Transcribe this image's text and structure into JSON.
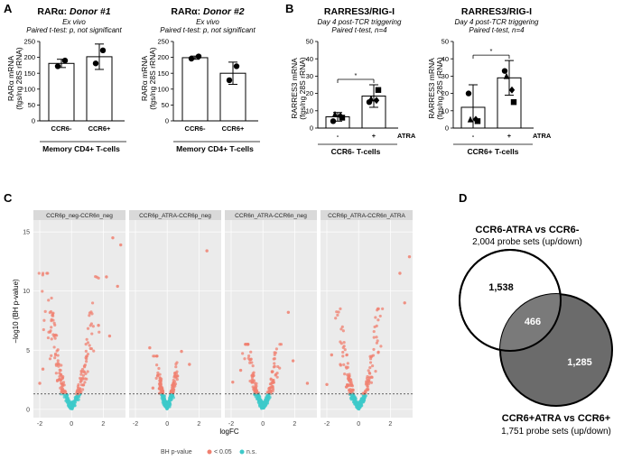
{
  "chart_data": [
    {
      "panel": "A",
      "type": "bar",
      "title_prefix": "RARα: ",
      "title_italic": "Donor #1",
      "subtitle1": "Ex vivo",
      "subtitle2": "Paired t-test: p, not significant",
      "ylabel": "RARα mRNA",
      "ylabel2": "(fgs/ng 28S rRNA)",
      "yticks": [
        "0",
        "50",
        "100",
        "150",
        "200",
        "250"
      ],
      "ylim": [
        0,
        250
      ],
      "categories": [
        "CCR6-",
        "CCR6+"
      ],
      "values": [
        181,
        202
      ],
      "errors": [
        13,
        40
      ],
      "points": [
        [
          172,
          190
        ],
        [
          181,
          222
        ]
      ],
      "group_label": "Memory CD4+ T-cells"
    },
    {
      "panel": "",
      "type": "bar",
      "title_prefix": "RARα: ",
      "title_italic": "Donor #2",
      "subtitle1": "Ex vivo",
      "subtitle2": "Paired t-test: p, not significant",
      "ylabel": "RARα mRNA",
      "ylabel2": "(fgs/ng 28S rRNA)",
      "yticks": [
        "0",
        "50",
        "100",
        "150",
        "200",
        "250"
      ],
      "ylim": [
        0,
        250
      ],
      "categories": [
        "CCR6-",
        "CCR6+"
      ],
      "values": [
        199,
        150
      ],
      "errors": [
        5,
        35
      ],
      "points": [
        [
          196,
          203
        ],
        [
          128,
          172
        ]
      ],
      "group_label": "Memory CD4+ T-cells"
    },
    {
      "panel": "B",
      "type": "bar",
      "title": "RARRES3/RIG-I",
      "subtitle1": "Day 4 post-TCR triggering",
      "subtitle2": "Paired t-test, n=4",
      "ylabel": "RARRES3 mRNA",
      "ylabel2": "(fgs/ng 28S rRNA)",
      "yticks": [
        "0",
        "10",
        "20",
        "30",
        "40",
        "50"
      ],
      "ylim": [
        0,
        50
      ],
      "categories": [
        "-",
        "+"
      ],
      "condition_label": "ATRA",
      "values": [
        6.5,
        18.5
      ],
      "errors": [
        2.5,
        6.5
      ],
      "points": [
        [
          4,
          6,
          8,
          7
        ],
        [
          15,
          22,
          17,
          16
        ]
      ],
      "significance": "*",
      "group_label": "CCR6- T-cells"
    },
    {
      "panel": "",
      "type": "bar",
      "title": "RARRES3/RIG-I",
      "subtitle1": "Day 4 post-TCR triggering",
      "subtitle2": "Paired t-test, n=4",
      "ylabel": "RARRES3 mRNA",
      "ylabel2": "(fgs/ng 28S rRNA)",
      "yticks": [
        "0",
        "10",
        "20",
        "30",
        "40",
        "50"
      ],
      "ylim": [
        0,
        50
      ],
      "categories": [
        "-",
        "+"
      ],
      "condition_label": "ATRA",
      "values": [
        12,
        29
      ],
      "errors": [
        13,
        10
      ],
      "points": [
        [
          20,
          4,
          5,
          5
        ],
        [
          33,
          15,
          30,
          22
        ]
      ],
      "significance": "*",
      "group_label": "CCR6+ T-cells"
    },
    {
      "panel": "C",
      "type": "scatter",
      "xlabel": "logFC",
      "ylabel": "−log10 (BH p-value)",
      "yticks": [
        "0",
        "5",
        "10",
        "15"
      ],
      "ylim": [
        -0.7,
        16
      ],
      "xticks": [
        "-2",
        "0",
        "2"
      ],
      "xlim": [
        -2.4,
        3.4
      ],
      "threshold": 1.3,
      "legend_title": "BH p-value",
      "legend_sig": "< 0.05",
      "legend_ns": "n.s.",
      "colors": {
        "sig": "#f08070",
        "ns": "#3ec9c9"
      },
      "facets": [
        {
          "label": "CCR6p_neg-CCR6n_neg",
          "spread": 0.75,
          "peak": 11.5,
          "outliers": [
            [
              2.6,
              14.5
            ],
            [
              3.1,
              13.9
            ],
            [
              2.2,
              11.2
            ],
            [
              2.9,
              10.4
            ],
            [
              -2.0,
              2.2
            ],
            [
              -1.8,
              3.4
            ],
            [
              1.7,
              7.1
            ],
            [
              2.4,
              6.2
            ]
          ]
        },
        {
          "label": "CCR6p_ATRA-CCR6p_neg",
          "spread": 0.32,
          "peak": 4.5,
          "outliers": [
            [
              2.5,
              13.4
            ],
            [
              -1.1,
              5.2
            ],
            [
              0.9,
              4.9
            ],
            [
              1.4,
              3.8
            ],
            [
              -0.9,
              1.8
            ]
          ]
        },
        {
          "label": "CCR6n_ATRA-CCR6n_neg",
          "spread": 0.45,
          "peak": 5.5,
          "outliers": [
            [
              1.6,
              8.2
            ],
            [
              -1.9,
              2.3
            ],
            [
              1.9,
              4.1
            ],
            [
              -1.4,
              3.3
            ],
            [
              2.8,
              2.2
            ]
          ]
        },
        {
          "label": "CCR6p_ATRA-CCR6n_ATRA",
          "spread": 0.6,
          "peak": 8.5,
          "outliers": [
            [
              3.2,
              12.9
            ],
            [
              2.6,
              11.5
            ],
            [
              -2.0,
              2.1
            ],
            [
              2.9,
              9.0
            ],
            [
              -1.7,
              4.6
            ]
          ]
        }
      ]
    },
    {
      "panel": "D",
      "type": "venn",
      "set_a_title": "CCR6-ATRA vs CCR6-",
      "set_a_sub": "2,004 probe sets (up/down)",
      "set_b_title": "CCR6+ATRA vs CCR6+",
      "set_b_sub": "1,751 probe sets (up/down)",
      "only_a": "1,538",
      "both": "466",
      "only_b": "1,285",
      "colors": {
        "set_b": "#6b6b6b",
        "overlap": "#7a7a7a"
      }
    }
  ]
}
